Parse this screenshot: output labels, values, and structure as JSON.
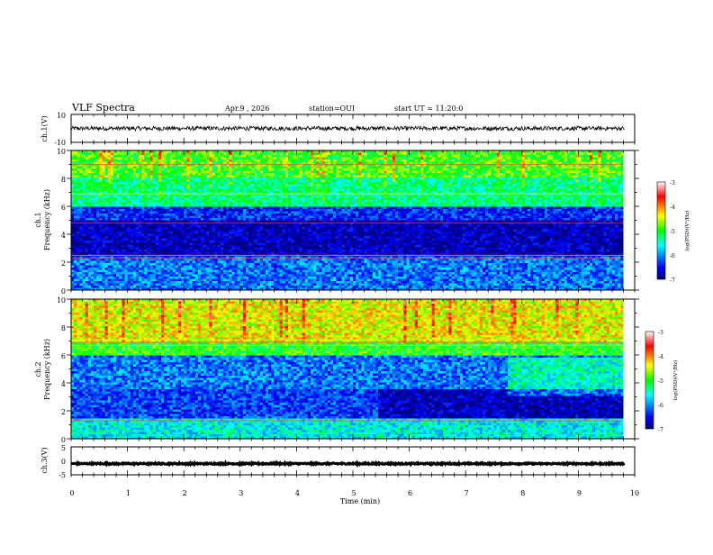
{
  "header": {
    "title": "VLF Spectra",
    "date": "Apr.9 , 2026",
    "station": "station=OUI",
    "start_ut": "start UT = 11:20:0"
  },
  "colorbar": {
    "label": "log(PSD)(V²/Hz)",
    "ticks": [
      "-3",
      "-4",
      "-5",
      "-6",
      "-7"
    ],
    "range": [
      -7,
      -3
    ]
  },
  "chart_data": [
    {
      "type": "line",
      "name": "ch1-waveform",
      "ylabel": "ch.1(V)",
      "ylim": [
        -10,
        10
      ],
      "yticks": [
        "10",
        "-10"
      ],
      "xlim": [
        0,
        10
      ],
      "baseline": 0,
      "noise_amplitude": 1.5
    },
    {
      "type": "heatmap",
      "name": "ch1-spectrogram",
      "ylabel_top": "ch.1",
      "ylabel": "Frequency (kHz)",
      "ylim": [
        0,
        10
      ],
      "yticks": [
        "0",
        "2",
        "4",
        "6",
        "8",
        "10"
      ],
      "xlim": [
        0,
        9.8
      ],
      "color_scale": "log(PSD)",
      "bands": [
        {
          "from": 0,
          "to": 2.5,
          "level": -6.1
        },
        {
          "from": 2.5,
          "to": 5,
          "level": -6.8
        },
        {
          "from": 5,
          "to": 6,
          "level": -6.4
        },
        {
          "from": 6,
          "to": 8,
          "level": -5.3
        },
        {
          "from": 8,
          "to": 10,
          "level": -4.9
        }
      ],
      "tones_khz": [
        2.3,
        2.5,
        4.8,
        6.9,
        9.0
      ]
    },
    {
      "type": "heatmap",
      "name": "ch2-spectrogram",
      "ylabel_top": "ch.2",
      "ylabel": "Frequency (kHz)",
      "ylim": [
        0,
        10
      ],
      "yticks": [
        "0",
        "2",
        "4",
        "6",
        "8",
        "10"
      ],
      "xlim": [
        0,
        9.8
      ],
      "color_scale": "log(PSD)",
      "bands": [
        {
          "from": 0,
          "to": 1.5,
          "level": -5.6
        },
        {
          "from": 1.5,
          "to": 3.5,
          "level": -6.3
        },
        {
          "from": 3.5,
          "to": 6,
          "level": -6.1
        },
        {
          "from": 6,
          "to": 7,
          "level": -5.0
        },
        {
          "from": 7,
          "to": 10,
          "level": -4.4
        }
      ],
      "tones_khz": [
        1.3,
        6.7,
        6.9,
        7.1
      ]
    },
    {
      "type": "line",
      "name": "ch3-waveform",
      "ylabel": "ch.3(V)",
      "ylim": [
        -5,
        5
      ],
      "yticks": [
        "5",
        "0",
        "-5"
      ],
      "xlim": [
        0,
        10
      ],
      "baseline": -1,
      "noise_amplitude": 0.25,
      "xlabel": "Time (min)",
      "xticks": [
        "0",
        "1",
        "2",
        "3",
        "4",
        "5",
        "6",
        "7",
        "8",
        "9",
        "10"
      ]
    }
  ]
}
